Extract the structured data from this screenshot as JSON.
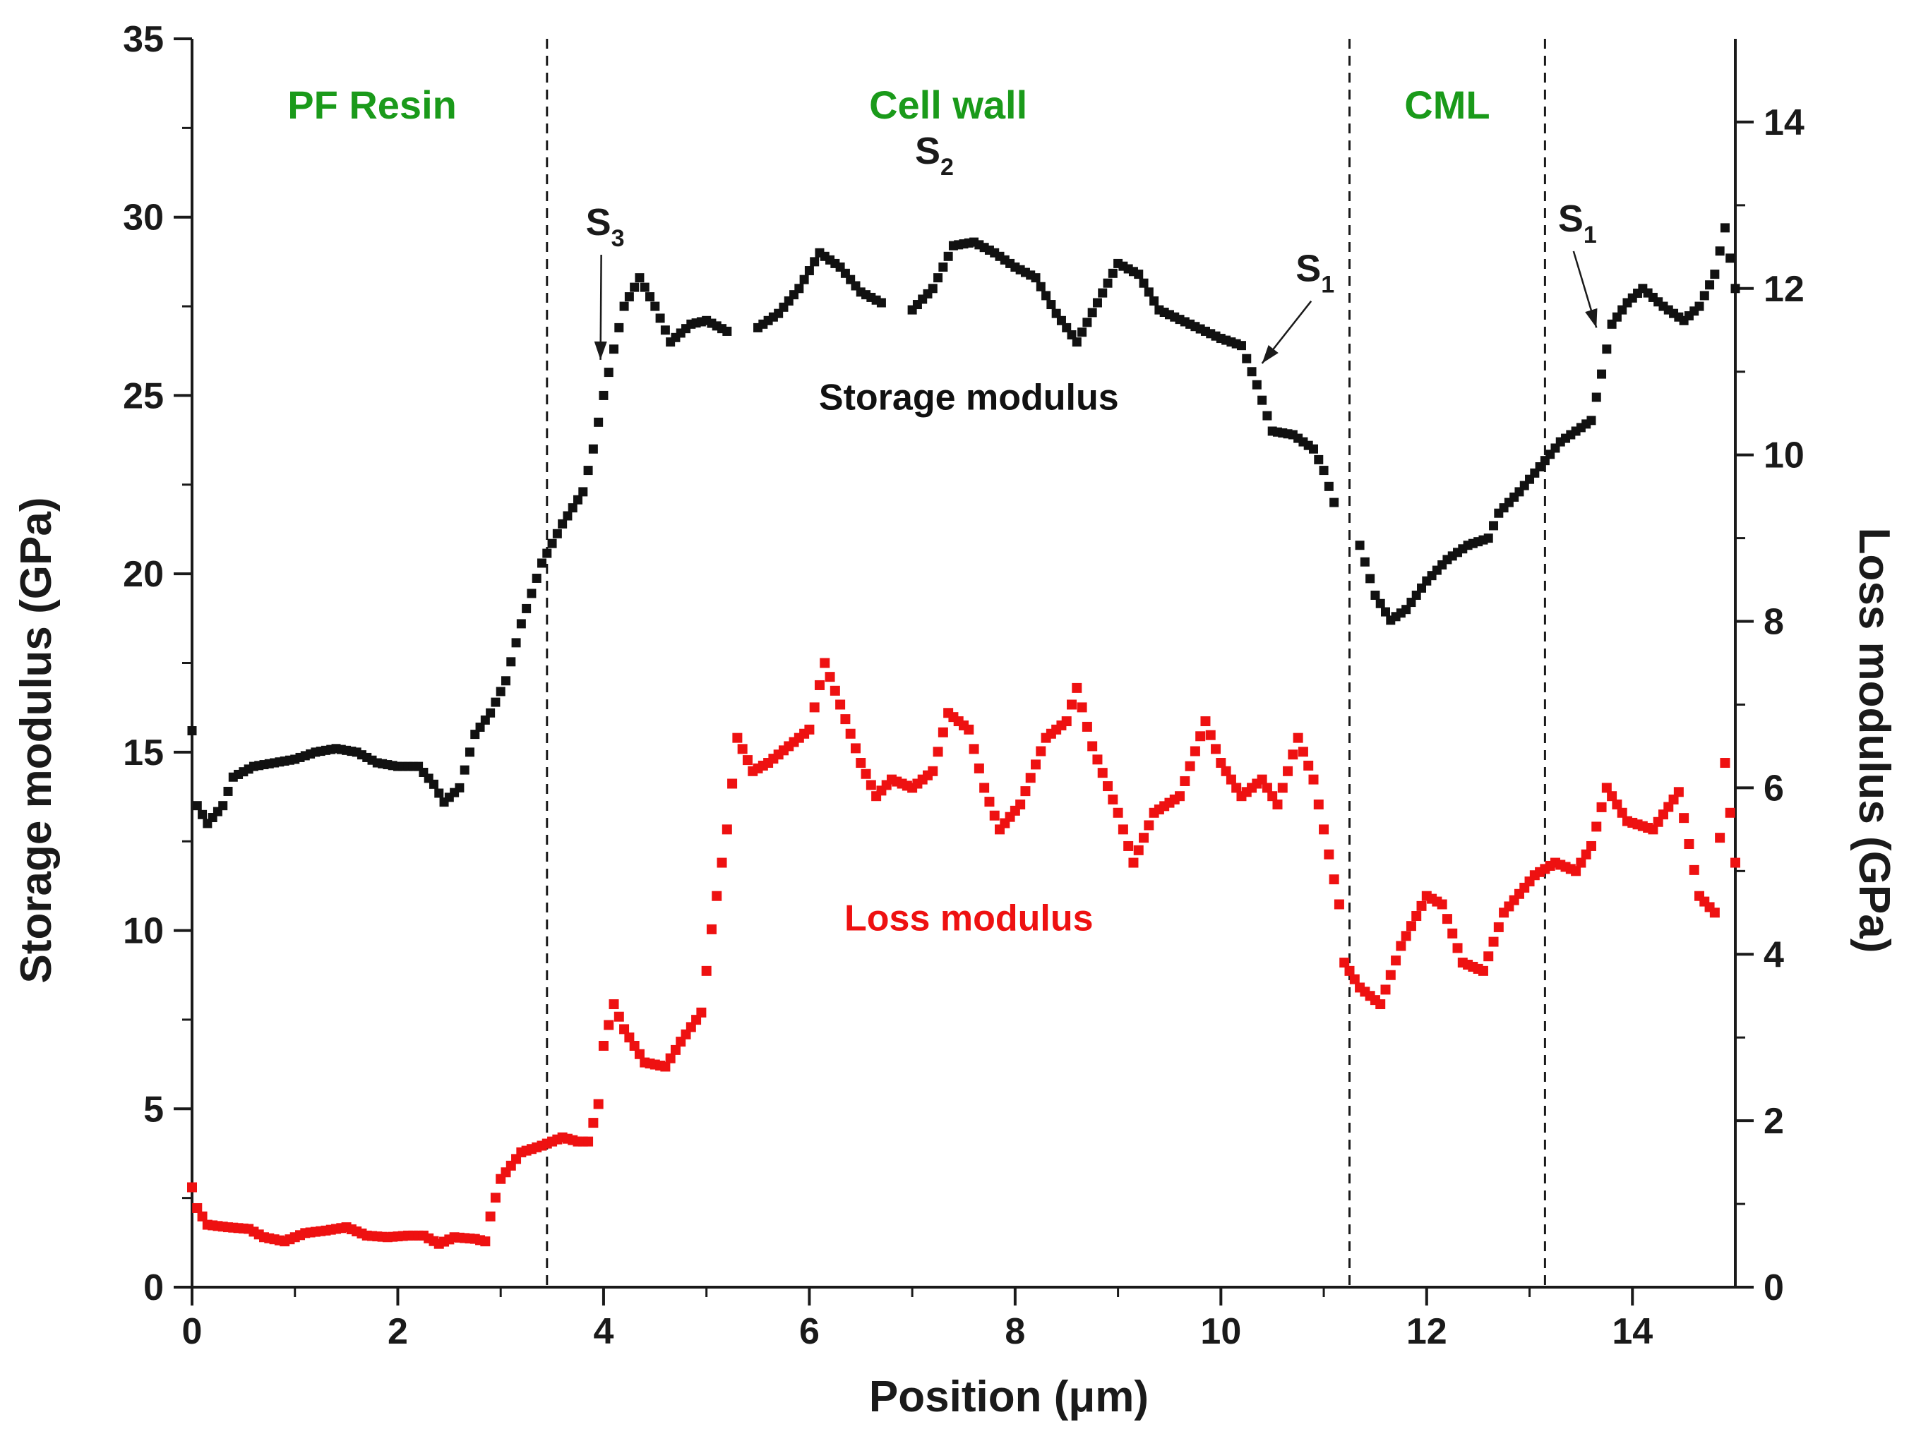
{
  "chart_data": {
    "type": "scatter",
    "title": "",
    "xlabel": "Position (μm)",
    "ylabel_left": "Storage modulus (GPa)",
    "ylabel_right": "Loss modulus (GPa)",
    "xlim": [
      0,
      15
    ],
    "ylim_left": [
      0,
      35
    ],
    "ylim_right": [
      0,
      15
    ],
    "x_ticks": [
      0,
      2,
      4,
      6,
      8,
      10,
      12,
      14
    ],
    "y_left_ticks": [
      0,
      5,
      10,
      15,
      20,
      25,
      30,
      35
    ],
    "y_right_ticks": [
      0,
      2,
      4,
      6,
      8,
      10,
      12,
      14
    ],
    "grid": false,
    "colors": {
      "storage": "#111111",
      "loss": "#ee1111",
      "region": "#1a9a1a",
      "axis": "#1a1a1a"
    },
    "region_boundaries": [
      3.45,
      11.25,
      13.15
    ],
    "regions": [
      {
        "label": "PF Resin",
        "x": 1.75
      },
      {
        "label": "Cell wall",
        "x": 7.35
      },
      {
        "label": "CML",
        "x": 12.2
      }
    ],
    "layer_annotations": [
      {
        "main": "S",
        "sub": "3",
        "x": 3.95,
        "y": 29.5,
        "arrow_to_x": 3.97,
        "arrow_to_y": 26.0
      },
      {
        "main": "S",
        "sub": "2",
        "x": 7.15,
        "y": 31.5
      },
      {
        "main": "S",
        "sub": "1",
        "x": 10.85,
        "y": 28.2,
        "arrow_to_x": 10.4,
        "arrow_to_y": 25.9
      },
      {
        "main": "S",
        "sub": "1",
        "x": 13.4,
        "y": 29.6,
        "arrow_to_x": 13.65,
        "arrow_to_y": 26.9
      }
    ],
    "series_labels": [
      {
        "text": "Storage modulus",
        "x": 7.55,
        "y": 24.6,
        "series": "storage"
      },
      {
        "text": "Loss modulus",
        "x": 7.55,
        "y": 10.0,
        "series": "loss"
      }
    ],
    "series": [
      {
        "name": "Storage modulus",
        "axis": "left",
        "knots": [
          [
            0.0,
            15.6
          ],
          [
            0.03,
            13.6
          ],
          [
            0.15,
            13.0
          ],
          [
            0.3,
            13.5
          ],
          [
            0.4,
            14.3
          ],
          [
            0.6,
            14.6
          ],
          [
            0.8,
            14.7
          ],
          [
            1.0,
            14.8
          ],
          [
            1.2,
            15.0
          ],
          [
            1.4,
            15.1
          ],
          [
            1.6,
            15.0
          ],
          [
            1.8,
            14.7
          ],
          [
            2.0,
            14.6
          ],
          [
            2.2,
            14.6
          ],
          [
            2.35,
            14.1
          ],
          [
            2.45,
            13.6
          ],
          [
            2.6,
            14.0
          ],
          [
            2.75,
            15.5
          ],
          [
            2.9,
            16.1
          ],
          [
            3.05,
            17.0
          ],
          [
            3.2,
            18.6
          ],
          [
            3.4,
            20.3
          ],
          [
            3.6,
            21.4
          ],
          [
            3.8,
            22.3
          ],
          [
            3.9,
            23.5
          ],
          [
            4.0,
            25.0
          ],
          [
            4.1,
            26.3
          ],
          [
            4.2,
            27.5
          ],
          [
            4.35,
            28.3
          ],
          [
            4.5,
            27.5
          ],
          [
            4.65,
            26.5
          ],
          [
            4.85,
            27.0
          ],
          [
            5.0,
            27.1
          ],
          [
            5.2,
            26.8
          ]
        ],
        "knots_2": [
          [
            5.5,
            26.9
          ],
          [
            5.7,
            27.3
          ],
          [
            5.9,
            28.0
          ],
          [
            6.1,
            29.0
          ],
          [
            6.3,
            28.6
          ],
          [
            6.5,
            27.9
          ],
          [
            6.7,
            27.6
          ]
        ],
        "knots_3": [
          [
            7.0,
            27.4
          ],
          [
            7.2,
            28.0
          ],
          [
            7.4,
            29.2
          ],
          [
            7.6,
            29.3
          ],
          [
            7.8,
            29.0
          ],
          [
            8.0,
            28.6
          ],
          [
            8.2,
            28.3
          ],
          [
            8.4,
            27.3
          ],
          [
            8.6,
            26.5
          ],
          [
            8.8,
            27.6
          ],
          [
            9.0,
            28.7
          ],
          [
            9.2,
            28.4
          ],
          [
            9.4,
            27.4
          ],
          [
            9.7,
            27.0
          ],
          [
            10.0,
            26.6
          ],
          [
            10.2,
            26.4
          ],
          [
            10.35,
            25.3
          ],
          [
            10.5,
            24.0
          ],
          [
            10.7,
            23.9
          ],
          [
            10.9,
            23.5
          ],
          [
            11.0,
            22.9
          ],
          [
            11.1,
            22.0
          ]
        ],
        "knots_4": [
          [
            11.35,
            20.8
          ],
          [
            11.5,
            19.4
          ],
          [
            11.65,
            18.7
          ],
          [
            11.8,
            19.0
          ],
          [
            12.0,
            19.8
          ],
          [
            12.2,
            20.4
          ],
          [
            12.4,
            20.8
          ],
          [
            12.6,
            21.0
          ],
          [
            12.7,
            21.7
          ],
          [
            12.9,
            22.3
          ],
          [
            13.1,
            23.0
          ],
          [
            13.3,
            23.7
          ],
          [
            13.5,
            24.1
          ],
          [
            13.6,
            24.3
          ],
          [
            13.7,
            25.6
          ],
          [
            13.8,
            27.0
          ],
          [
            13.95,
            27.6
          ],
          [
            14.1,
            28.0
          ],
          [
            14.3,
            27.5
          ],
          [
            14.5,
            27.1
          ],
          [
            14.65,
            27.5
          ],
          [
            14.8,
            28.4
          ],
          [
            14.9,
            29.7
          ],
          [
            15.0,
            28.0
          ]
        ],
        "bridges": [
          [
            5.21,
            5.49
          ],
          [
            6.71,
            6.99
          ],
          [
            11.11,
            11.34
          ]
        ],
        "gaps": [
          [
            5.21,
            5.49
          ],
          [
            6.71,
            6.99
          ],
          [
            11.11,
            11.34
          ]
        ]
      },
      {
        "name": "Loss modulus",
        "axis": "right",
        "knots": [
          [
            0.0,
            1.2
          ],
          [
            0.05,
            0.95
          ],
          [
            0.15,
            0.75
          ],
          [
            0.35,
            0.72
          ],
          [
            0.55,
            0.7
          ],
          [
            0.7,
            0.6
          ],
          [
            0.9,
            0.55
          ],
          [
            1.1,
            0.65
          ],
          [
            1.3,
            0.68
          ],
          [
            1.5,
            0.72
          ],
          [
            1.7,
            0.62
          ],
          [
            1.9,
            0.6
          ],
          [
            2.1,
            0.62
          ],
          [
            2.25,
            0.62
          ],
          [
            2.4,
            0.52
          ],
          [
            2.55,
            0.6
          ],
          [
            2.75,
            0.58
          ],
          [
            2.85,
            0.55
          ],
          [
            2.9,
            0.85
          ],
          [
            3.0,
            1.3
          ],
          [
            3.2,
            1.62
          ],
          [
            3.4,
            1.7
          ],
          [
            3.6,
            1.8
          ],
          [
            3.75,
            1.75
          ],
          [
            3.85,
            1.75
          ],
          [
            3.95,
            2.2
          ],
          [
            4.0,
            2.9
          ],
          [
            4.1,
            3.4
          ],
          [
            4.2,
            3.1
          ],
          [
            4.4,
            2.7
          ],
          [
            4.6,
            2.65
          ],
          [
            4.75,
            2.95
          ],
          [
            4.95,
            3.3
          ],
          [
            5.05,
            4.3
          ],
          [
            5.2,
            5.5
          ],
          [
            5.3,
            6.6
          ],
          [
            5.45,
            6.2
          ],
          [
            5.6,
            6.3
          ],
          [
            5.8,
            6.5
          ],
          [
            6.0,
            6.7
          ],
          [
            6.15,
            7.5
          ],
          [
            6.3,
            7.0
          ],
          [
            6.5,
            6.3
          ],
          [
            6.65,
            5.9
          ],
          [
            6.8,
            6.1
          ],
          [
            7.0,
            6.0
          ],
          [
            7.2,
            6.2
          ],
          [
            7.35,
            6.9
          ],
          [
            7.55,
            6.7
          ],
          [
            7.7,
            6.0
          ],
          [
            7.85,
            5.5
          ],
          [
            8.05,
            5.8
          ],
          [
            8.3,
            6.6
          ],
          [
            8.5,
            6.8
          ],
          [
            8.6,
            7.2
          ],
          [
            8.75,
            6.5
          ],
          [
            9.0,
            5.7
          ],
          [
            9.15,
            5.1
          ],
          [
            9.35,
            5.7
          ],
          [
            9.6,
            5.9
          ],
          [
            9.85,
            6.8
          ],
          [
            10.0,
            6.3
          ],
          [
            10.2,
            5.9
          ],
          [
            10.4,
            6.1
          ],
          [
            10.55,
            5.8
          ],
          [
            10.75,
            6.6
          ],
          [
            10.9,
            6.1
          ],
          [
            11.05,
            5.2
          ],
          [
            11.15,
            4.6
          ],
          [
            11.2,
            3.9
          ],
          [
            11.35,
            3.6
          ],
          [
            11.55,
            3.4
          ],
          [
            11.75,
            4.1
          ],
          [
            12.0,
            4.7
          ],
          [
            12.15,
            4.6
          ],
          [
            12.35,
            3.9
          ],
          [
            12.55,
            3.8
          ],
          [
            12.75,
            4.5
          ],
          [
            13.05,
            4.95
          ],
          [
            13.25,
            5.1
          ],
          [
            13.45,
            5.0
          ],
          [
            13.6,
            5.3
          ],
          [
            13.75,
            6.0
          ],
          [
            13.95,
            5.6
          ],
          [
            14.2,
            5.5
          ],
          [
            14.45,
            5.95
          ],
          [
            14.65,
            4.7
          ],
          [
            14.8,
            4.5
          ],
          [
            14.9,
            6.3
          ],
          [
            15.0,
            5.1
          ]
        ]
      }
    ]
  }
}
